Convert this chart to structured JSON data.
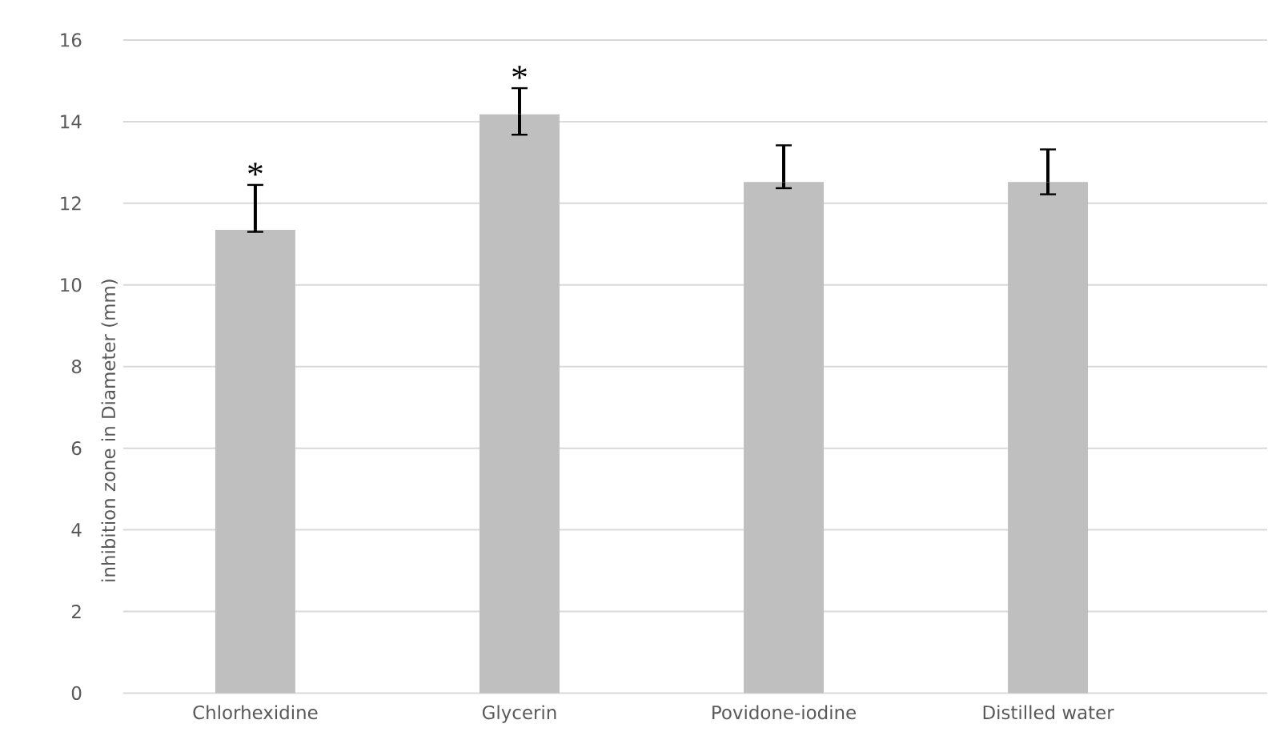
{
  "chart_data": {
    "type": "bar",
    "ylabel": "inhibition zone in Diameter  (mm)",
    "categories": [
      "Chlorhexidine",
      "Glycerin",
      "Povidone-iodine",
      "Distilled water"
    ],
    "values": [
      11.35,
      14.18,
      12.52,
      12.52
    ],
    "errors": [
      [
        11.3,
        12.45
      ],
      [
        13.68,
        14.82
      ],
      [
        12.37,
        13.42
      ],
      [
        12.22,
        13.32
      ]
    ],
    "color": "#bfbfbf",
    "ylim": [
      0,
      16
    ],
    "yticks": [
      0,
      2,
      4,
      6,
      8,
      10,
      12,
      14,
      16
    ],
    "grid": "y",
    "annotations": [
      "*",
      "*"
    ]
  }
}
